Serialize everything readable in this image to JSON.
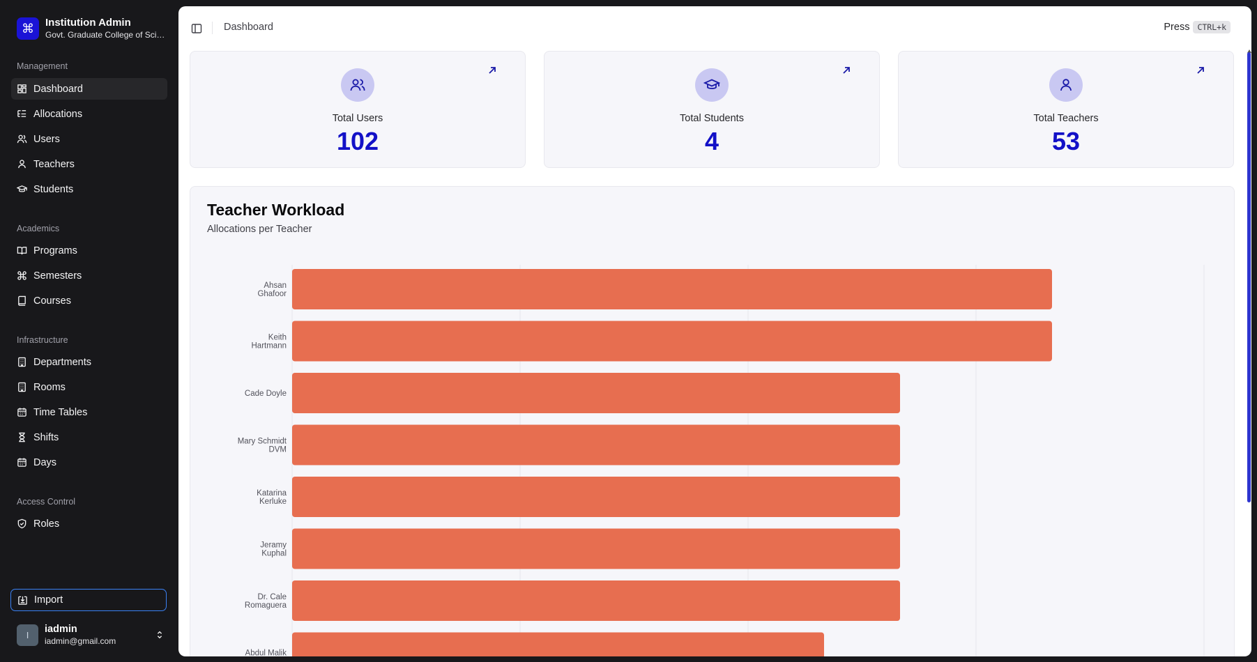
{
  "brand": {
    "title": "Institution Admin",
    "subtitle": "Govt. Graduate College of Science"
  },
  "sidebar": {
    "groups": [
      {
        "label": "Management",
        "items": [
          {
            "label": "Dashboard",
            "icon": "layout-dashboard-icon"
          },
          {
            "label": "Allocations",
            "icon": "list-tree-icon"
          },
          {
            "label": "Users",
            "icon": "users-icon"
          },
          {
            "label": "Teachers",
            "icon": "user-icon"
          },
          {
            "label": "Students",
            "icon": "graduation-cap-icon"
          }
        ]
      },
      {
        "label": "Academics",
        "items": [
          {
            "label": "Programs",
            "icon": "book-open-icon"
          },
          {
            "label": "Semesters",
            "icon": "command-icon"
          },
          {
            "label": "Courses",
            "icon": "book-icon"
          }
        ]
      },
      {
        "label": "Infrastructure",
        "items": [
          {
            "label": "Departments",
            "icon": "building-icon"
          },
          {
            "label": "Rooms",
            "icon": "building-icon"
          },
          {
            "label": "Time Tables",
            "icon": "calendar-icon"
          },
          {
            "label": "Shifts",
            "icon": "hourglass-icon"
          },
          {
            "label": "Days",
            "icon": "calendar-icon"
          }
        ]
      },
      {
        "label": "Access Control",
        "items": [
          {
            "label": "Roles",
            "icon": "shield-check-icon"
          }
        ]
      }
    ],
    "import_label": "Import",
    "user": {
      "initial": "I",
      "name": "iadmin",
      "email": "iadmin@gmail.com"
    }
  },
  "header": {
    "breadcrumb": "Dashboard",
    "press_label": "Press",
    "shortcut": "CTRL+k"
  },
  "stats": [
    {
      "label": "Total Users",
      "value": "102",
      "icon": "users-icon"
    },
    {
      "label": "Total Students",
      "value": "4",
      "icon": "graduation-cap-icon"
    },
    {
      "label": "Total Teachers",
      "value": "53",
      "icon": "user-icon"
    }
  ],
  "colors": {
    "accent": "#1311c7",
    "bar": "#e76e50",
    "brand": "#1a13d6"
  },
  "chart_data": {
    "type": "bar",
    "orientation": "horizontal",
    "title": "Teacher Workload",
    "subtitle": "Allocations per Teacher",
    "categories": [
      "Ahsan Ghafoor",
      "Keith Hartmann",
      "Cade Doyle",
      "Mary Schmidt DVM",
      "Katarina Kerluke",
      "Jeramy Kuphal",
      "Dr. Cale Romaguera",
      "Abdul Malik"
    ],
    "values": [
      10,
      10,
      8,
      8,
      8,
      8,
      8,
      7
    ],
    "xlim": [
      0,
      12
    ],
    "grid": true
  }
}
